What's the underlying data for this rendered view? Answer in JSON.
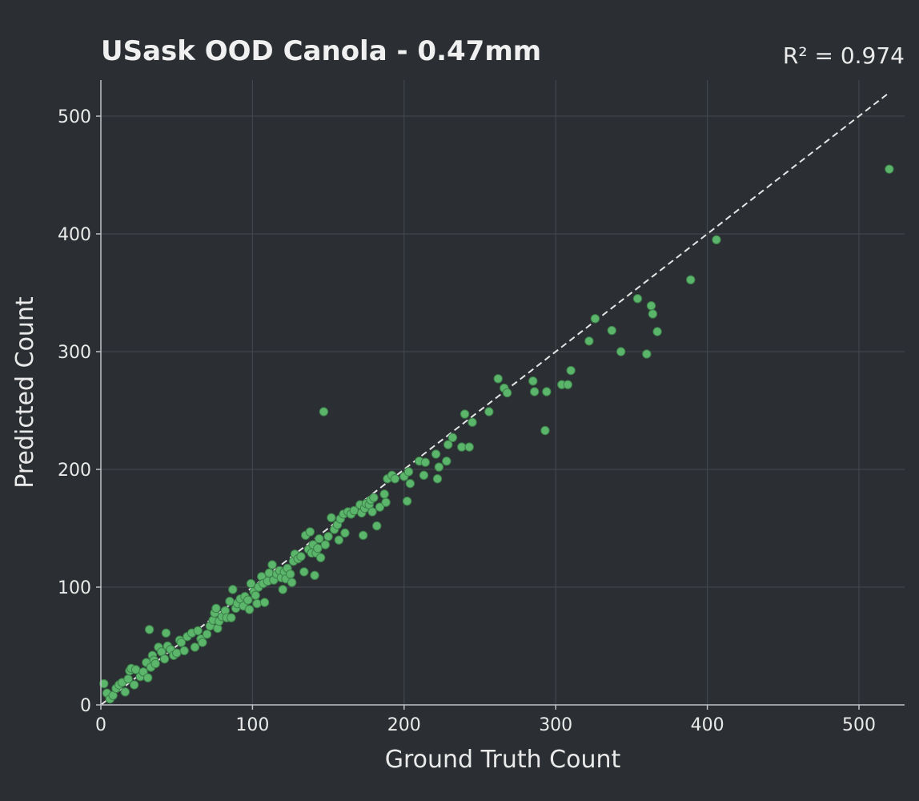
{
  "chart_data": {
    "type": "scatter",
    "title": "USask OOD Canola - 0.47mm",
    "annotation": "R² = 0.974",
    "xlabel": "Ground Truth Count",
    "ylabel": "Predicted Count",
    "xlim": [
      0,
      530
    ],
    "ylim": [
      0,
      530
    ],
    "xticks": [
      "0",
      "100",
      "200",
      "300",
      "400",
      "500"
    ],
    "yticks": [
      "0",
      "100",
      "200",
      "300",
      "400",
      "500"
    ],
    "tick_values": [
      0,
      100,
      200,
      300,
      400,
      500
    ],
    "grid": true,
    "reference_line": "y = x",
    "point_color": "#5bb56a",
    "points": [
      [
        2,
        18
      ],
      [
        4,
        10
      ],
      [
        6,
        5
      ],
      [
        8,
        8
      ],
      [
        10,
        14
      ],
      [
        12,
        17
      ],
      [
        14,
        19
      ],
      [
        16,
        11
      ],
      [
        18,
        22
      ],
      [
        19,
        29
      ],
      [
        20,
        31
      ],
      [
        22,
        17
      ],
      [
        23,
        30
      ],
      [
        26,
        24
      ],
      [
        28,
        28
      ],
      [
        30,
        36
      ],
      [
        31,
        23
      ],
      [
        32,
        64
      ],
      [
        33,
        32
      ],
      [
        34,
        42
      ],
      [
        35,
        38
      ],
      [
        36,
        35
      ],
      [
        38,
        49
      ],
      [
        40,
        45
      ],
      [
        42,
        39
      ],
      [
        43,
        61
      ],
      [
        44,
        50
      ],
      [
        46,
        47
      ],
      [
        48,
        42
      ],
      [
        50,
        44
      ],
      [
        52,
        55
      ],
      [
        53,
        53
      ],
      [
        55,
        46
      ],
      [
        57,
        58
      ],
      [
        60,
        61
      ],
      [
        62,
        49
      ],
      [
        64,
        63
      ],
      [
        66,
        56
      ],
      [
        67,
        53
      ],
      [
        70,
        60
      ],
      [
        72,
        67
      ],
      [
        74,
        72
      ],
      [
        75,
        78
      ],
      [
        76,
        82
      ],
      [
        77,
        65
      ],
      [
        78,
        71
      ],
      [
        80,
        75
      ],
      [
        82,
        80
      ],
      [
        83,
        74
      ],
      [
        85,
        88
      ],
      [
        86,
        74
      ],
      [
        87,
        98
      ],
      [
        89,
        82
      ],
      [
        90,
        86
      ],
      [
        92,
        90
      ],
      [
        94,
        84
      ],
      [
        95,
        92
      ],
      [
        97,
        89
      ],
      [
        98,
        81
      ],
      [
        99,
        103
      ],
      [
        101,
        96
      ],
      [
        102,
        93
      ],
      [
        103,
        86
      ],
      [
        104,
        100
      ],
      [
        106,
        109
      ],
      [
        107,
        103
      ],
      [
        108,
        87
      ],
      [
        110,
        105
      ],
      [
        111,
        112
      ],
      [
        113,
        119
      ],
      [
        114,
        106
      ],
      [
        116,
        111
      ],
      [
        118,
        114
      ],
      [
        119,
        108
      ],
      [
        120,
        98
      ],
      [
        121,
        113
      ],
      [
        122,
        107
      ],
      [
        123,
        116
      ],
      [
        125,
        111
      ],
      [
        126,
        104
      ],
      [
        127,
        122
      ],
      [
        128,
        128
      ],
      [
        130,
        124
      ],
      [
        132,
        126
      ],
      [
        134,
        113
      ],
      [
        135,
        144
      ],
      [
        137,
        132
      ],
      [
        138,
        147
      ],
      [
        139,
        129
      ],
      [
        140,
        136
      ],
      [
        141,
        110
      ],
      [
        142,
        129
      ],
      [
        143,
        133
      ],
      [
        144,
        141
      ],
      [
        145,
        125
      ],
      [
        147,
        249
      ],
      [
        148,
        136
      ],
      [
        150,
        143
      ],
      [
        152,
        159
      ],
      [
        154,
        149
      ],
      [
        156,
        153
      ],
      [
        157,
        140
      ],
      [
        158,
        158
      ],
      [
        160,
        162
      ],
      [
        161,
        146
      ],
      [
        163,
        164
      ],
      [
        165,
        162
      ],
      [
        167,
        165
      ],
      [
        171,
        170
      ],
      [
        172,
        163
      ],
      [
        173,
        144
      ],
      [
        174,
        167
      ],
      [
        175,
        171
      ],
      [
        177,
        170
      ],
      [
        178,
        174
      ],
      [
        179,
        164
      ],
      [
        180,
        176
      ],
      [
        182,
        152
      ],
      [
        184,
        168
      ],
      [
        187,
        179
      ],
      [
        188,
        172
      ],
      [
        189,
        192
      ],
      [
        192,
        195
      ],
      [
        194,
        192
      ],
      [
        200,
        194
      ],
      [
        202,
        173
      ],
      [
        203,
        198
      ],
      [
        204,
        188
      ],
      [
        210,
        207
      ],
      [
        213,
        195
      ],
      [
        214,
        206
      ],
      [
        221,
        213
      ],
      [
        222,
        192
      ],
      [
        223,
        202
      ],
      [
        228,
        207
      ],
      [
        229,
        221
      ],
      [
        232,
        227
      ],
      [
        238,
        219
      ],
      [
        240,
        247
      ],
      [
        243,
        219
      ],
      [
        245,
        240
      ],
      [
        256,
        249
      ],
      [
        262,
        277
      ],
      [
        266,
        269
      ],
      [
        268,
        265
      ],
      [
        285,
        275
      ],
      [
        286,
        266
      ],
      [
        293,
        233
      ],
      [
        294,
        266
      ],
      [
        304,
        272
      ],
      [
        308,
        272
      ],
      [
        310,
        284
      ],
      [
        322,
        309
      ],
      [
        326,
        328
      ],
      [
        337,
        318
      ],
      [
        343,
        300
      ],
      [
        354,
        345
      ],
      [
        360,
        298
      ],
      [
        363,
        339
      ],
      [
        364,
        332
      ],
      [
        367,
        317
      ],
      [
        389,
        361
      ],
      [
        406,
        395
      ],
      [
        520,
        455
      ]
    ]
  }
}
